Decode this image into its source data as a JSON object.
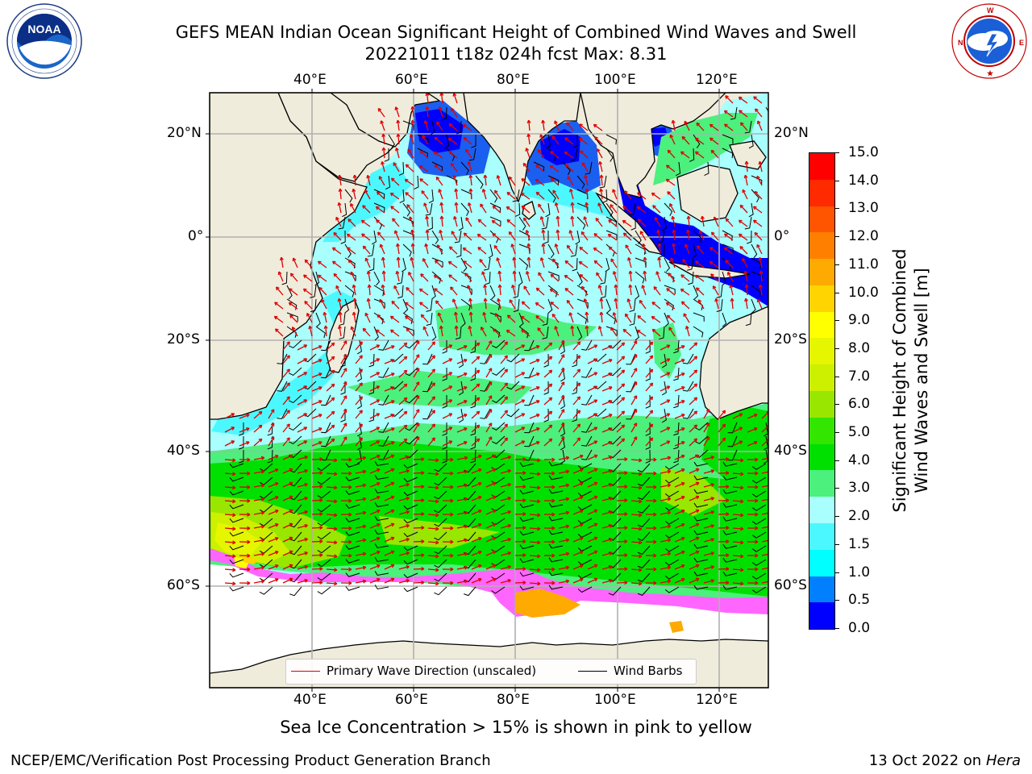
{
  "header": {
    "title_line1": "GEFS MEAN Indian Ocean Significant Height of Combined Wind Waves and Swell",
    "title_line2": "20221011 t18z 024h fcst   Max: 8.31"
  },
  "logos": {
    "left": {
      "name": "noaa-logo",
      "text": "NOAA",
      "ring": "NATIONAL OCEANIC AND ATMOSPHERIC ADMINISTRATION · U.S. DEPARTMENT OF COMMERCE"
    },
    "right": {
      "name": "nws-logo",
      "ring": "NATIONAL WEATHER SERVICE"
    }
  },
  "map": {
    "top_lon_labels": [
      "40°E",
      "60°E",
      "80°E",
      "100°E",
      "120°E"
    ],
    "bottom_lon_labels": [
      "40°E",
      "60°E",
      "80°E",
      "100°E",
      "120°E"
    ],
    "lat_labels": [
      "20°N",
      "0°",
      "20°S",
      "40°S",
      "60°S"
    ],
    "right_lat_labels": [
      "20°N",
      "0°",
      "20°S",
      "40°S",
      "60°S"
    ],
    "land_color": "#efecdc",
    "grid_color": "#b0b0b0",
    "wave_arrow_color": "#e00000",
    "wind_barb_color": "#000000"
  },
  "legend": {
    "wave_label": "Primary Wave Direction (unscaled)",
    "wind_label": "Wind Barbs"
  },
  "colorbar": {
    "label_line1": "Significant Height of Combined",
    "label_line2": "Wind Waves and Swell [m]",
    "ticks": [
      "15.0",
      "14.0",
      "13.0",
      "12.0",
      "11.0",
      "10.0",
      "9.0",
      "8.0",
      "7.0",
      "6.0",
      "5.0",
      "4.0",
      "3.0",
      "2.0",
      "1.5",
      "1.0",
      "0.5",
      "0.0"
    ],
    "colors": [
      "#ff0000",
      "#ff2a00",
      "#ff5500",
      "#ff8000",
      "#ffaa00",
      "#ffd400",
      "#ffff00",
      "#e6f500",
      "#ccf000",
      "#99e600",
      "#33e600",
      "#00e000",
      "#4cf07c",
      "#a8fffe",
      "#4cf8ff",
      "#00ffff",
      "#0080ff",
      "#0000ff"
    ]
  },
  "footer": {
    "note": "Sea Ice Concentration > 15% is shown in pink to yellow",
    "credit": "NCEP/EMC/Verification Post Processing Product Generation Branch",
    "date": "13 Oct 2022 on ",
    "host": "Hera"
  }
}
